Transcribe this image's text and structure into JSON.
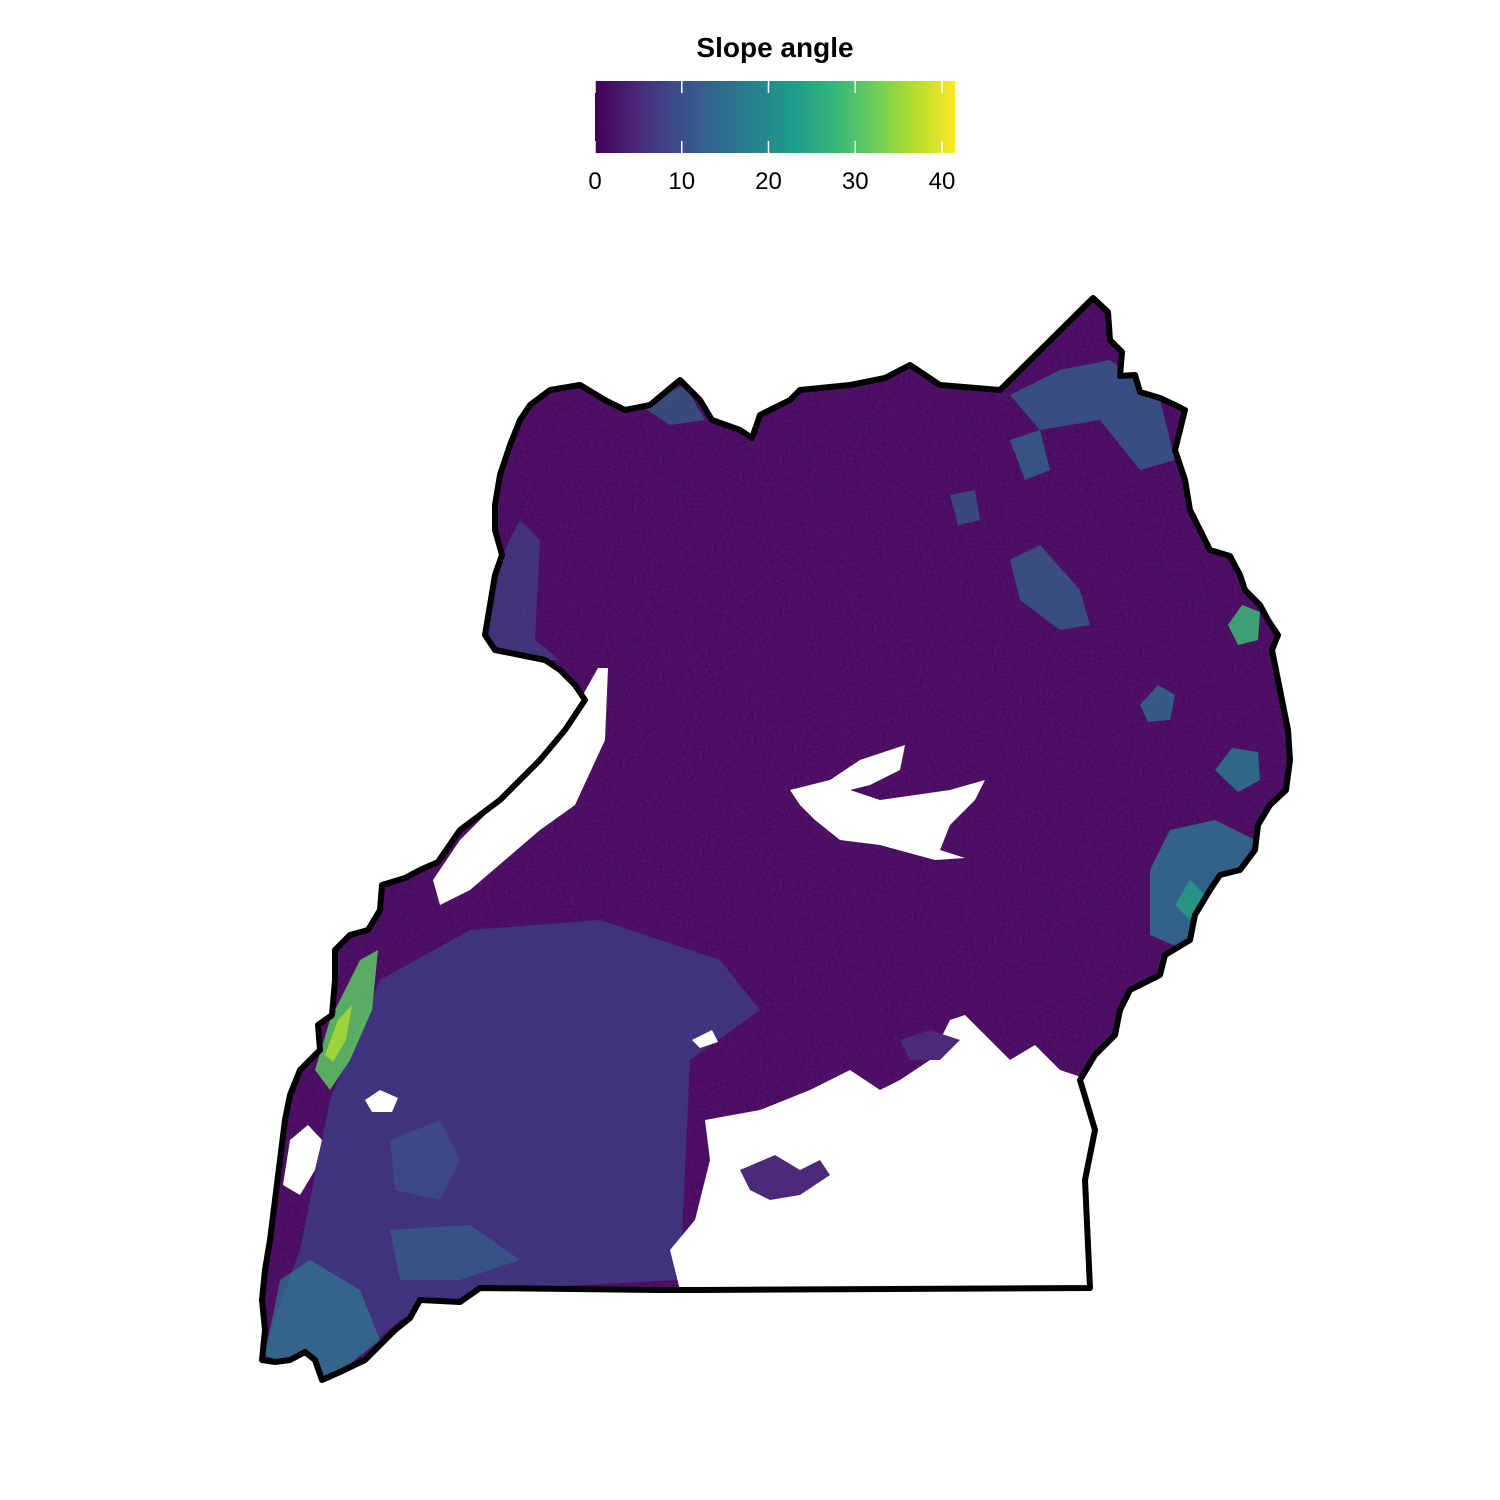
{
  "legend": {
    "title": "Slope angle",
    "min": 0,
    "max": 41.5,
    "ticks": [
      "0",
      "10",
      "20",
      "30",
      "40"
    ],
    "tick_values": [
      0,
      10,
      20,
      30,
      40
    ],
    "palette": "viridis",
    "colors": [
      "#440154",
      "#482878",
      "#3E4A89",
      "#31688E",
      "#26828E",
      "#1F9E89",
      "#35B779",
      "#6DCD59",
      "#B4DE2C",
      "#FDE725"
    ]
  },
  "map": {
    "region": "Uganda",
    "variable": "slope angle",
    "outline_color": "#000000",
    "no_data_color": "#ffffff",
    "base_color": "#45065A",
    "no_data_areas": [
      "Lake Victoria",
      "Lake Albert",
      "Lake Kyoga",
      "Lake Edward",
      "Lake George"
    ]
  }
}
